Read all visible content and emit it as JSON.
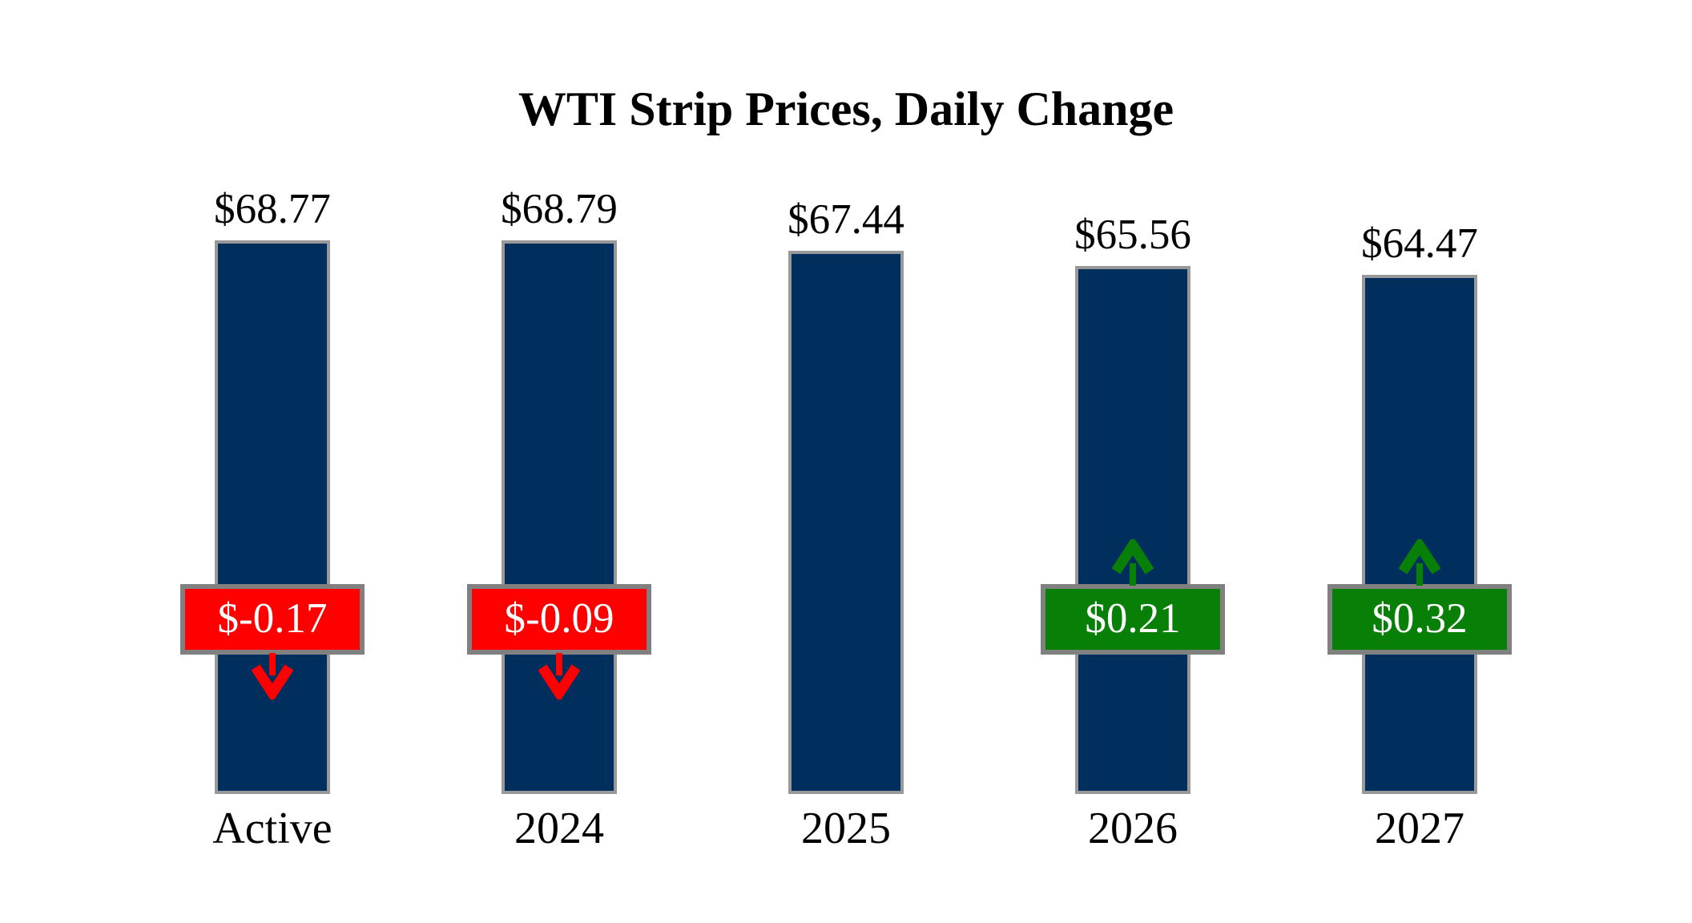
{
  "title": "WTI Strip Prices, Daily Change",
  "colors": {
    "background": "#FFFFFF",
    "bar_fill": "#002F5E",
    "bar_border": "#999999",
    "negative_fill": "#FF0000",
    "positive_fill": "#088008",
    "badge_border": "#808080",
    "badge_text": "#FFFFFF",
    "label_text": "#000000"
  },
  "icons": {
    "negative": "down-arrow-icon",
    "positive": "up-arrow-icon"
  },
  "chart_data": {
    "type": "bar",
    "title": "WTI Strip Prices, Daily Change",
    "categories": [
      "Active",
      "2024",
      "2025",
      "2026",
      "2027"
    ],
    "series": [
      {
        "name": "strip_price_usd_per_bbl",
        "values": [
          68.77,
          68.79,
          67.44,
          65.56,
          64.47
        ],
        "labels": [
          "$68.77",
          "$68.79",
          "$67.44",
          "$65.56",
          "$64.47"
        ]
      },
      {
        "name": "daily_change_usd",
        "values": [
          -0.17,
          -0.09,
          null,
          0.21,
          0.32
        ],
        "labels": [
          "$-0.17",
          "$-0.09",
          null,
          "$0.21",
          "$0.32"
        ]
      }
    ],
    "ylim": [
      0,
      69
    ],
    "bar_baseline_value": 0,
    "grid": false,
    "legend": false
  }
}
